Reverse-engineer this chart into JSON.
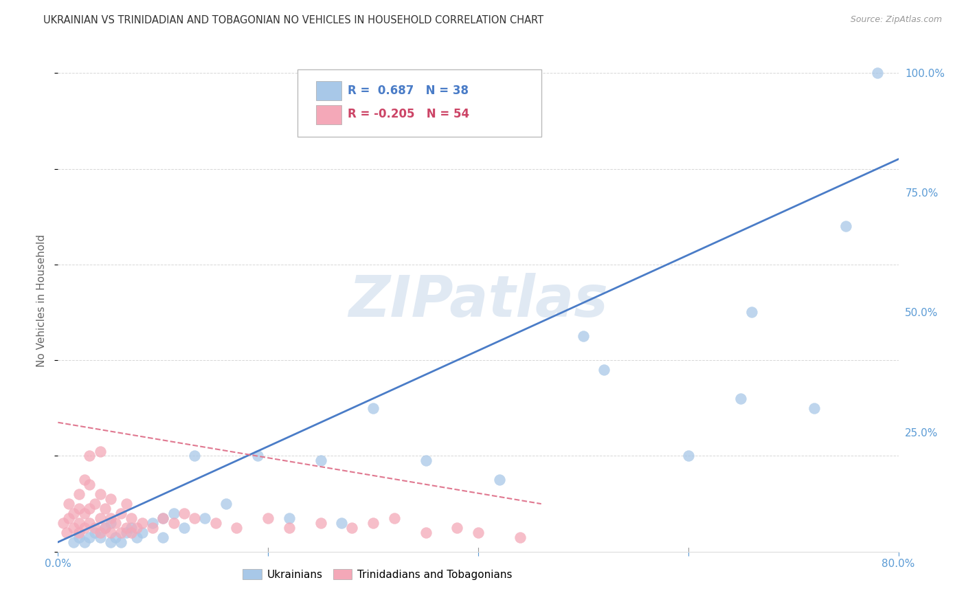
{
  "title": "UKRAINIAN VS TRINIDADIAN AND TOBAGONIAN NO VEHICLES IN HOUSEHOLD CORRELATION CHART",
  "source": "Source: ZipAtlas.com",
  "ylabel": "No Vehicles in Household",
  "xlim": [
    0.0,
    0.8
  ],
  "ylim": [
    0.0,
    1.05
  ],
  "ytick_positions": [
    0.0,
    0.25,
    0.5,
    0.75,
    1.0
  ],
  "ytick_labels": [
    "",
    "25.0%",
    "50.0%",
    "75.0%",
    "100.0%"
  ],
  "xtick_positions": [
    0.0,
    0.2,
    0.4,
    0.6,
    0.8
  ],
  "xtick_labels": [
    "0.0%",
    "",
    "",
    "",
    "80.0%"
  ],
  "blue_R": 0.687,
  "blue_N": 38,
  "pink_R": -0.205,
  "pink_N": 54,
  "blue_color": "#a8c8e8",
  "pink_color": "#f4a8b8",
  "blue_line_color": "#4a7cc7",
  "pink_line_color": "#e07890",
  "blue_line_x": [
    0.0,
    0.8
  ],
  "blue_line_y": [
    0.02,
    0.82
  ],
  "pink_line_x": [
    0.0,
    0.46
  ],
  "pink_line_y": [
    0.27,
    0.1
  ],
  "blue_points_x": [
    0.015,
    0.02,
    0.025,
    0.03,
    0.035,
    0.04,
    0.045,
    0.05,
    0.05,
    0.055,
    0.06,
    0.065,
    0.07,
    0.075,
    0.08,
    0.09,
    0.1,
    0.1,
    0.11,
    0.12,
    0.13,
    0.14,
    0.16,
    0.19,
    0.22,
    0.25,
    0.27,
    0.3,
    0.35,
    0.42,
    0.5,
    0.52,
    0.6,
    0.65,
    0.66,
    0.72,
    0.75,
    0.78
  ],
  "blue_points_y": [
    0.02,
    0.03,
    0.02,
    0.03,
    0.04,
    0.03,
    0.05,
    0.02,
    0.06,
    0.03,
    0.02,
    0.04,
    0.05,
    0.03,
    0.04,
    0.06,
    0.07,
    0.03,
    0.08,
    0.05,
    0.2,
    0.07,
    0.1,
    0.2,
    0.07,
    0.19,
    0.06,
    0.3,
    0.19,
    0.15,
    0.45,
    0.38,
    0.2,
    0.32,
    0.5,
    0.3,
    0.68,
    1.0
  ],
  "pink_points_x": [
    0.005,
    0.008,
    0.01,
    0.01,
    0.015,
    0.015,
    0.02,
    0.02,
    0.02,
    0.02,
    0.025,
    0.025,
    0.025,
    0.03,
    0.03,
    0.03,
    0.03,
    0.035,
    0.035,
    0.04,
    0.04,
    0.04,
    0.04,
    0.045,
    0.045,
    0.05,
    0.05,
    0.05,
    0.055,
    0.06,
    0.06,
    0.065,
    0.065,
    0.07,
    0.07,
    0.075,
    0.08,
    0.09,
    0.1,
    0.11,
    0.12,
    0.13,
    0.15,
    0.17,
    0.2,
    0.22,
    0.25,
    0.28,
    0.3,
    0.32,
    0.35,
    0.38,
    0.4,
    0.44
  ],
  "pink_points_y": [
    0.06,
    0.04,
    0.07,
    0.1,
    0.05,
    0.08,
    0.04,
    0.06,
    0.09,
    0.12,
    0.05,
    0.08,
    0.15,
    0.06,
    0.09,
    0.14,
    0.2,
    0.05,
    0.1,
    0.04,
    0.07,
    0.12,
    0.21,
    0.05,
    0.09,
    0.04,
    0.07,
    0.11,
    0.06,
    0.04,
    0.08,
    0.05,
    0.1,
    0.04,
    0.07,
    0.05,
    0.06,
    0.05,
    0.07,
    0.06,
    0.08,
    0.07,
    0.06,
    0.05,
    0.07,
    0.05,
    0.06,
    0.05,
    0.06,
    0.07,
    0.04,
    0.05,
    0.04,
    0.03
  ],
  "watermark_text": "ZIPatlas",
  "watermark_color": "#c8d8ea",
  "grid_color": "#cccccc",
  "background_color": "#ffffff",
  "title_color": "#333333",
  "axis_color": "#5b9bd5"
}
